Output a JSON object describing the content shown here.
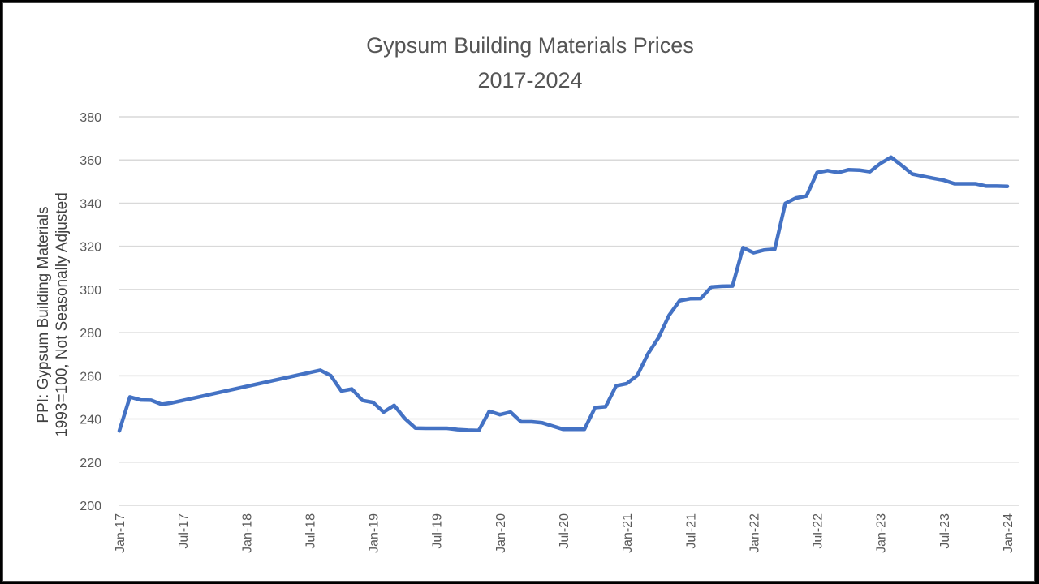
{
  "chart_data": {
    "type": "line",
    "title": [
      "Gypsum Building Materials Prices",
      "2017-2024"
    ],
    "ylabel": [
      "PPI: Gypsum Building Materials",
      "1993=100, Not Seasonally Adjusted"
    ],
    "xlabel": "",
    "ylim": [
      200,
      380
    ],
    "yticks": [
      200,
      220,
      240,
      260,
      280,
      300,
      320,
      340,
      360,
      380
    ],
    "xlim": [
      "2017-01",
      "2024-01"
    ],
    "xticks": [
      "Jan-17",
      "Jul-17",
      "Jan-18",
      "Jul-18",
      "Jan-19",
      "Jul-19",
      "Jan-20",
      "Jul-20",
      "Jan-21",
      "Jul-21",
      "Jan-22",
      "Jul-22",
      "Jan-23",
      "Jul-23",
      "Jan-24"
    ],
    "grid": true,
    "legend": "none",
    "colors": {
      "series": "#4472c4",
      "grid": "#d9d9d9"
    },
    "series": [
      {
        "x": [
          "2017-01",
          "2017-02",
          "2017-03",
          "2017-04",
          "2017-05",
          "2017-06",
          "2018-08",
          "2018-09",
          "2018-10",
          "2018-11",
          "2018-12",
          "2019-01",
          "2019-02",
          "2019-03",
          "2019-04",
          "2019-05",
          "2019-06",
          "2019-07",
          "2019-08",
          "2019-09",
          "2019-10",
          "2019-11",
          "2019-12",
          "2020-01",
          "2020-02",
          "2020-03",
          "2020-04",
          "2020-05",
          "2020-06",
          "2020-07",
          "2020-08",
          "2020-09",
          "2020-10",
          "2020-11",
          "2020-12",
          "2021-01",
          "2021-02",
          "2021-03",
          "2021-04",
          "2021-05",
          "2021-06",
          "2021-07",
          "2021-08",
          "2021-09",
          "2021-10",
          "2021-11",
          "2021-12",
          "2022-01",
          "2022-02",
          "2022-03",
          "2022-04",
          "2022-05",
          "2022-06",
          "2022-07",
          "2022-08",
          "2022-09",
          "2022-10",
          "2022-11",
          "2022-12",
          "2023-01",
          "2023-02",
          "2023-03",
          "2023-04",
          "2023-05",
          "2023-06",
          "2023-07",
          "2023-08",
          "2023-09",
          "2023-10",
          "2023-11",
          "2023-12",
          "2024-01"
        ],
        "values": [
          234.5,
          250.2,
          248.8,
          248.7,
          246.8,
          247.5,
          262.6,
          260.1,
          253.0,
          253.9,
          248.6,
          247.7,
          243.2,
          246.3,
          240.3,
          235.8,
          235.7,
          235.7,
          235.7,
          235.1,
          234.8,
          234.7,
          243.6,
          242.0,
          243.2,
          238.7,
          238.7,
          238.2,
          236.7,
          235.2,
          235.2,
          235.2,
          245.3,
          245.7,
          255.4,
          256.4,
          260.2,
          270.2,
          277.6,
          288.0,
          294.8,
          295.7,
          295.8,
          301.2,
          301.5,
          301.6,
          319.4,
          317.0,
          318.3,
          318.7,
          339.9,
          342.4,
          343.3,
          354.2,
          355.1,
          354.2,
          355.5,
          355.3,
          354.6,
          358.4,
          361.3,
          357.5,
          353.5,
          352.5,
          351.5,
          350.6,
          349.0,
          349.0,
          349.0,
          347.9,
          347.9,
          347.8
        ]
      }
    ]
  }
}
